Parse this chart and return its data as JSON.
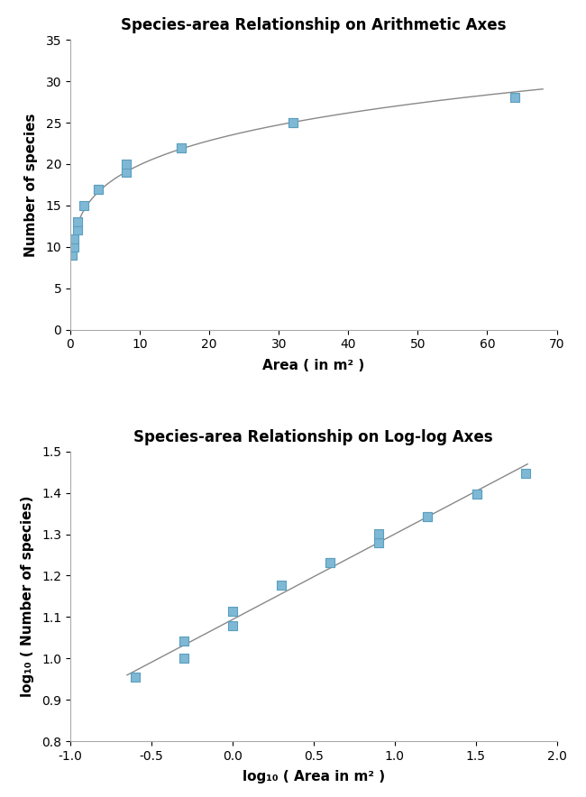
{
  "title1": "Species-area Relationship on Arithmetic Axes",
  "title2": "Species-area Relationship on Log-log Axes",
  "xlabel1": "Area ( in m² )",
  "ylabel1": "Number of species",
  "xlabel2": "log₁₀ ( Area in m² )",
  "ylabel2": "log₁₀ ( Number of species)",
  "area": [
    0.25,
    0.5,
    0.5,
    1.0,
    1.0,
    2.0,
    4.0,
    4.0,
    8.0,
    8.0,
    16.0,
    16.0,
    32.0,
    32.0,
    64.0
  ],
  "species": [
    9,
    10,
    11,
    12,
    13,
    15,
    17,
    17,
    19,
    20,
    22,
    22,
    25,
    25,
    28
  ],
  "xlim1": [
    0,
    70
  ],
  "ylim1": [
    0,
    35
  ],
  "xlim2": [
    -1.0,
    2.0
  ],
  "ylim2": [
    0.8,
    1.5
  ],
  "marker_color": "#7eb8d4",
  "marker_edge_color": "#5a9fc0",
  "line_color": "#888888",
  "bg_color": "#ffffff",
  "title_fontsize": 12,
  "label_fontsize": 11,
  "tick_fontsize": 10,
  "xticks1": [
    0,
    10,
    20,
    30,
    40,
    50,
    60,
    70
  ],
  "yticks1": [
    0,
    5,
    10,
    15,
    20,
    25,
    30,
    35
  ],
  "xticks2": [
    -1.0,
    -0.5,
    0.0,
    0.5,
    1.0,
    1.5,
    2.0
  ],
  "yticks2": [
    0.8,
    0.9,
    1.0,
    1.1,
    1.2,
    1.3,
    1.4,
    1.5
  ]
}
